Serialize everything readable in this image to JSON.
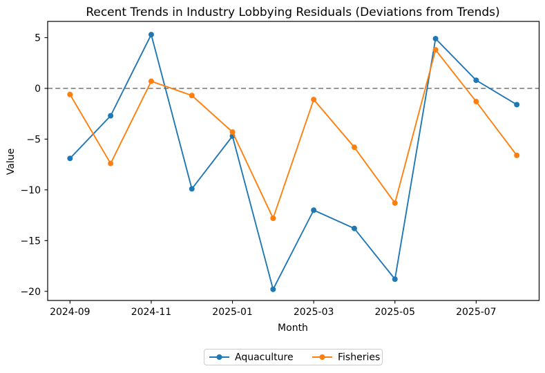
{
  "chart_data": {
    "type": "line",
    "title": "Recent Trends in Industry Lobbying Residuals (Deviations from Trends)",
    "xlabel": "Month",
    "ylabel": "Value",
    "categories": [
      "2024-09",
      "2024-10",
      "2024-11",
      "2024-12",
      "2025-01",
      "2025-02",
      "2025-03",
      "2025-04",
      "2025-05",
      "2025-06",
      "2025-07",
      "2025-08"
    ],
    "series": [
      {
        "name": "Aquaculture",
        "color": "#1f77b4",
        "values": [
          -6.9,
          -2.7,
          5.3,
          -9.9,
          -4.7,
          -19.8,
          -12.0,
          -13.8,
          -18.8,
          4.9,
          0.8,
          -1.6
        ]
      },
      {
        "name": "Fisheries",
        "color": "#ff7f0e",
        "values": [
          -0.6,
          -7.4,
          0.7,
          -0.7,
          -4.3,
          -12.8,
          -1.1,
          -5.8,
          -11.3,
          3.8,
          -1.3,
          -6.6
        ]
      }
    ],
    "x_tick_labels": [
      "2024-09",
      "2024-11",
      "2025-01",
      "2025-03",
      "2025-05",
      "2025-07"
    ],
    "x_tick_indices": [
      0,
      2,
      4,
      6,
      8,
      10
    ],
    "y_ticks": [
      5,
      0,
      -5,
      -10,
      -15,
      -20
    ],
    "xlim": [
      -0.55,
      11.55
    ],
    "ylim": [
      -20.9,
      6.6
    ],
    "reference_line": {
      "y": 0,
      "color": "#808080",
      "style": "dashed"
    },
    "legend": {
      "position": "bottom-center",
      "entries": [
        "Aquaculture",
        "Fisheries"
      ]
    },
    "grid": false,
    "marker": "circle"
  }
}
